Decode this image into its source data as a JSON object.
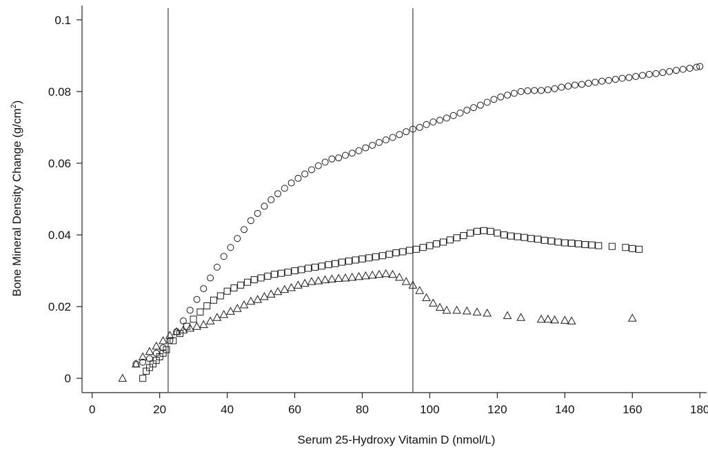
{
  "chart_data": {
    "type": "scatter",
    "xlabel": "Serum 25-Hydroxy Vitamin D (nmol/L)",
    "ylabel_main": "Bone Mineral Density Change (g/cm",
    "ylabel_sup": "2",
    "ylabel_close": ")",
    "xlim": [
      -3,
      182
    ],
    "ylim": [
      -0.004,
      0.104
    ],
    "xticks": [
      "0",
      "20",
      "40",
      "60",
      "80",
      "100",
      "120",
      "140",
      "160",
      "180"
    ],
    "yticks": [
      "0",
      "0.02",
      "0.04",
      "0.06",
      "0.08",
      "0.1"
    ],
    "xtick_values": [
      0,
      20,
      40,
      60,
      80,
      100,
      120,
      140,
      160,
      180
    ],
    "ytick_values": [
      0,
      0.02,
      0.04,
      0.06,
      0.08,
      0.1
    ],
    "reference_lines_x": [
      22.5,
      95
    ],
    "series": [
      {
        "marker": "circle",
        "x": [
          13,
          15,
          17,
          19,
          21,
          23,
          25,
          27,
          29,
          31,
          33,
          35,
          37,
          39,
          41,
          43,
          45,
          47,
          49,
          51,
          53,
          55,
          57,
          59,
          61,
          63,
          65,
          67,
          69,
          71,
          73,
          75,
          77,
          79,
          81,
          83,
          85,
          87,
          89,
          91,
          93,
          95,
          97,
          99,
          101,
          103,
          105,
          107,
          109,
          111,
          113,
          115,
          117,
          119,
          121,
          123,
          125,
          127,
          129,
          131,
          133,
          135,
          137,
          139,
          141,
          143,
          145,
          147,
          149,
          151,
          153,
          155,
          157,
          159,
          161,
          163,
          165,
          167,
          169,
          171,
          173,
          175,
          177,
          179,
          180
        ],
        "y": [
          0.004,
          0.0045,
          0.0055,
          0.007,
          0.0085,
          0.0105,
          0.013,
          0.016,
          0.019,
          0.022,
          0.025,
          0.028,
          0.031,
          0.034,
          0.0365,
          0.039,
          0.0415,
          0.044,
          0.046,
          0.048,
          0.0498,
          0.0515,
          0.053,
          0.0545,
          0.0558,
          0.057,
          0.0582,
          0.0593,
          0.0603,
          0.0612,
          0.0615,
          0.0622,
          0.0628,
          0.0635,
          0.0643,
          0.065,
          0.0658,
          0.0665,
          0.0672,
          0.068,
          0.0688,
          0.0695,
          0.07,
          0.0708,
          0.0715,
          0.072,
          0.0726,
          0.0733,
          0.074,
          0.0748,
          0.0755,
          0.0762,
          0.077,
          0.0778,
          0.0785,
          0.079,
          0.0795,
          0.08,
          0.0802,
          0.0803,
          0.0803,
          0.0805,
          0.0808,
          0.0812,
          0.0815,
          0.0818,
          0.082,
          0.0823,
          0.0826,
          0.0829,
          0.0831,
          0.0834,
          0.0837,
          0.0839,
          0.0842,
          0.0845,
          0.0848,
          0.085,
          0.0853,
          0.0856,
          0.0859,
          0.0862,
          0.0865,
          0.0868,
          0.087
        ]
      },
      {
        "marker": "square",
        "x": [
          15,
          16,
          17,
          18,
          19,
          20,
          21,
          22,
          24,
          26,
          28,
          30,
          32,
          34,
          36,
          38,
          40,
          42,
          44,
          46,
          48,
          50,
          52,
          54,
          56,
          58,
          60,
          62,
          64,
          66,
          68,
          70,
          72,
          74,
          76,
          78,
          80,
          82,
          84,
          86,
          88,
          90,
          92,
          94,
          96,
          98,
          100,
          102,
          104,
          106,
          108,
          110,
          112,
          114,
          116,
          118,
          120,
          122,
          124,
          126,
          128,
          130,
          132,
          134,
          136,
          138,
          140,
          142,
          144,
          146,
          148,
          150,
          154,
          158,
          160,
          162
        ],
        "y": [
          0.0,
          0.002,
          0.003,
          0.004,
          0.005,
          0.006,
          0.007,
          0.008,
          0.0105,
          0.0125,
          0.0145,
          0.0165,
          0.0185,
          0.0202,
          0.0218,
          0.023,
          0.0243,
          0.0252,
          0.026,
          0.0268,
          0.0275,
          0.028,
          0.0285,
          0.029,
          0.0293,
          0.0296,
          0.03,
          0.0303,
          0.0307,
          0.031,
          0.0313,
          0.0317,
          0.032,
          0.0324,
          0.0327,
          0.033,
          0.0333,
          0.0336,
          0.0339,
          0.0342,
          0.0346,
          0.035,
          0.0353,
          0.0357,
          0.036,
          0.0365,
          0.037,
          0.0375,
          0.038,
          0.0386,
          0.0392,
          0.0398,
          0.0405,
          0.041,
          0.0412,
          0.041,
          0.0405,
          0.04,
          0.0397,
          0.0395,
          0.0393,
          0.039,
          0.0388,
          0.0385,
          0.0383,
          0.038,
          0.0378,
          0.0377,
          0.0375,
          0.0373,
          0.0372,
          0.037,
          0.0368,
          0.0365,
          0.0362,
          0.036
        ]
      },
      {
        "marker": "triangle",
        "x": [
          9,
          13,
          15,
          17,
          19,
          21,
          23,
          25,
          27,
          29,
          31,
          33,
          35,
          37,
          39,
          41,
          43,
          45,
          47,
          49,
          51,
          53,
          55,
          57,
          59,
          61,
          63,
          65,
          67,
          69,
          71,
          73,
          75,
          77,
          79,
          81,
          83,
          85,
          87,
          89,
          91,
          93,
          95,
          97,
          99,
          101,
          103,
          105,
          108,
          111,
          114,
          117,
          123,
          127,
          133,
          135,
          137,
          140,
          142,
          160
        ],
        "y": [
          0.0,
          0.004,
          0.006,
          0.0075,
          0.009,
          0.0105,
          0.012,
          0.013,
          0.0135,
          0.014,
          0.0145,
          0.015,
          0.016,
          0.017,
          0.0178,
          0.0187,
          0.0195,
          0.0205,
          0.0215,
          0.022,
          0.0228,
          0.0235,
          0.0242,
          0.0248,
          0.0253,
          0.026,
          0.0265,
          0.027,
          0.0272,
          0.0275,
          0.0277,
          0.0279,
          0.028,
          0.0282,
          0.0284,
          0.0286,
          0.0288,
          0.029,
          0.0292,
          0.029,
          0.0282,
          0.027,
          0.026,
          0.0245,
          0.0225,
          0.021,
          0.0198,
          0.019,
          0.019,
          0.0188,
          0.0185,
          0.0182,
          0.0175,
          0.017,
          0.0165,
          0.0165,
          0.0163,
          0.0162,
          0.016,
          0.0168
        ]
      }
    ]
  }
}
